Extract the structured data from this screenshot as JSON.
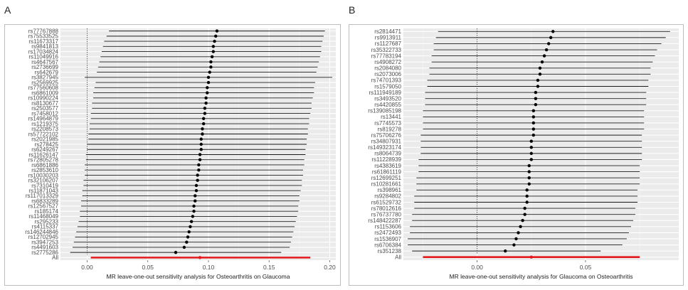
{
  "panels": {
    "a": {
      "letter": "A"
    },
    "b": {
      "letter": "B"
    }
  },
  "chart_data": [
    {
      "type": "scatter",
      "panel": "A",
      "title": "",
      "xlabel": "MR leave-one-out sensitivity analysis for Osteoarthritis on Glaucoma",
      "ylabel": "",
      "xlim": [
        -0.022,
        0.205
      ],
      "xticks": [
        0.0,
        0.05,
        0.1,
        0.15,
        0.2
      ],
      "xtick_labels": [
        "0.00",
        "0.05",
        "0.10",
        "0.15",
        "0.20"
      ],
      "reference_line_x": 0,
      "grid": true,
      "snps": [
        "rs77767888",
        "rs75533525",
        "rs11673317",
        "rs9841813",
        "rs17034824",
        "rs11049916",
        "rs4647567",
        "rs2736699",
        "rs642679",
        "rs3827945",
        "rs2569925",
        "rs77560608",
        "rs6861009",
        "rs10990224",
        "rs8130677",
        "rs2503577",
        "rs7458012",
        "rs14964879",
        "rs1219375",
        "rs2208573",
        "rs57722102",
        "rs2021985",
        "rs278425",
        "rs6249267",
        "rs11626147",
        "rs72805278",
        "rs6861886",
        "rs2853610",
        "rs10030203",
        "rs32106207",
        "rs7310419",
        "rs11871043",
        "rs117013329",
        "rs6833289",
        "rs12567527",
        "rs185174",
        "rs11468049",
        "rs295233",
        "rs4115337",
        "rs146244846",
        "rs12702945",
        "rs3947253",
        "rs4491603",
        "rs2775286"
      ],
      "estimates": [
        0.107,
        0.106,
        0.105,
        0.104,
        0.104,
        0.103,
        0.102,
        0.102,
        0.101,
        0.1,
        0.1,
        0.099,
        0.099,
        0.098,
        0.098,
        0.097,
        0.097,
        0.096,
        0.096,
        0.095,
        0.095,
        0.094,
        0.094,
        0.094,
        0.093,
        0.093,
        0.092,
        0.092,
        0.091,
        0.091,
        0.09,
        0.09,
        0.089,
        0.089,
        0.088,
        0.088,
        0.087,
        0.086,
        0.085,
        0.084,
        0.083,
        0.082,
        0.08,
        0.073
      ],
      "ci_lower": [
        0.018,
        0.016,
        0.014,
        0.013,
        0.012,
        0.011,
        0.01,
        0.009,
        0.008,
        -0.002,
        0.007,
        0.006,
        0.005,
        0.005,
        0.004,
        0.004,
        0.003,
        0.003,
        0.002,
        0.002,
        0.001,
        0.001,
        0.0,
        0.0,
        -0.001,
        -0.001,
        -0.002,
        -0.002,
        -0.002,
        -0.003,
        -0.003,
        -0.004,
        -0.004,
        -0.005,
        -0.005,
        -0.006,
        -0.006,
        -0.007,
        -0.008,
        -0.009,
        -0.01,
        -0.011,
        -0.012,
        -0.014
      ],
      "ci_upper": [
        0.196,
        0.195,
        0.194,
        0.193,
        0.193,
        0.192,
        0.191,
        0.19,
        0.189,
        0.202,
        0.188,
        0.187,
        0.187,
        0.186,
        0.185,
        0.185,
        0.184,
        0.183,
        0.183,
        0.182,
        0.182,
        0.181,
        0.181,
        0.18,
        0.18,
        0.179,
        0.179,
        0.178,
        0.178,
        0.177,
        0.177,
        0.176,
        0.175,
        0.175,
        0.174,
        0.174,
        0.173,
        0.172,
        0.171,
        0.17,
        0.169,
        0.168,
        0.167,
        0.16
      ],
      "overall": {
        "label": "All",
        "estimate": 0.093,
        "ci_lower": 0.003,
        "ci_upper": 0.184
      }
    },
    {
      "type": "scatter",
      "panel": "B",
      "title": "",
      "xlabel": "MR leave-one-out sensitivity analysis for Glaucoma on Osteoarthritis",
      "ylabel": "",
      "xlim": [
        -0.034,
        0.093
      ],
      "xticks": [
        0.0,
        0.05
      ],
      "xtick_labels": [
        "0.00",
        "0.05"
      ],
      "reference_line_x": 0,
      "grid": true,
      "snps": [
        "rs2814471",
        "rs9913911",
        "rs1127687",
        "rs35322733",
        "rs77783194",
        "rs4908272",
        "rs2084080",
        "rs2073006",
        "rs74701393",
        "rs1579050",
        "rs111949189",
        "rs3493520",
        "rs4420855",
        "rs139085198",
        "rs13441",
        "rs7745573",
        "rs819278",
        "rs75706276",
        "rs34807931",
        "rs149323174",
        "rs8064739",
        "rs11228939",
        "rs4383619",
        "rs61861119",
        "rs12699251",
        "rs10281661",
        "rs398961",
        "rs9284802",
        "rs61529732",
        "rs78012616",
        "rs76737780",
        "rs148422287",
        "rs1153606",
        "rs2472493",
        "rs1536907",
        "rs6706384",
        "rs351238"
      ],
      "estimates": [
        0.035,
        0.034,
        0.033,
        0.032,
        0.031,
        0.03,
        0.029,
        0.029,
        0.028,
        0.028,
        0.027,
        0.027,
        0.027,
        0.026,
        0.026,
        0.026,
        0.026,
        0.026,
        0.025,
        0.025,
        0.025,
        0.025,
        0.024,
        0.024,
        0.024,
        0.024,
        0.023,
        0.023,
        0.023,
        0.022,
        0.022,
        0.021,
        0.02,
        0.019,
        0.018,
        0.017,
        0.013
      ],
      "ci_lower": [
        -0.018,
        -0.019,
        -0.02,
        -0.02,
        -0.021,
        -0.021,
        -0.022,
        -0.022,
        -0.023,
        -0.023,
        -0.024,
        -0.024,
        -0.024,
        -0.025,
        -0.025,
        -0.025,
        -0.025,
        -0.026,
        -0.026,
        -0.026,
        -0.026,
        -0.027,
        -0.027,
        -0.027,
        -0.028,
        -0.028,
        -0.028,
        -0.029,
        -0.029,
        -0.029,
        -0.03,
        -0.03,
        -0.031,
        -0.031,
        -0.032,
        -0.032,
        -0.03
      ],
      "ci_upper": [
        0.089,
        0.087,
        0.085,
        0.083,
        0.082,
        0.081,
        0.08,
        0.08,
        0.079,
        0.079,
        0.078,
        0.078,
        0.078,
        0.077,
        0.077,
        0.077,
        0.077,
        0.076,
        0.076,
        0.076,
        0.076,
        0.076,
        0.075,
        0.075,
        0.075,
        0.075,
        0.074,
        0.074,
        0.074,
        0.073,
        0.073,
        0.072,
        0.071,
        0.07,
        0.069,
        0.067,
        0.057
      ],
      "overall": {
        "label": "All",
        "estimate": 0.025,
        "ci_lower": -0.025,
        "ci_upper": 0.075
      }
    }
  ]
}
